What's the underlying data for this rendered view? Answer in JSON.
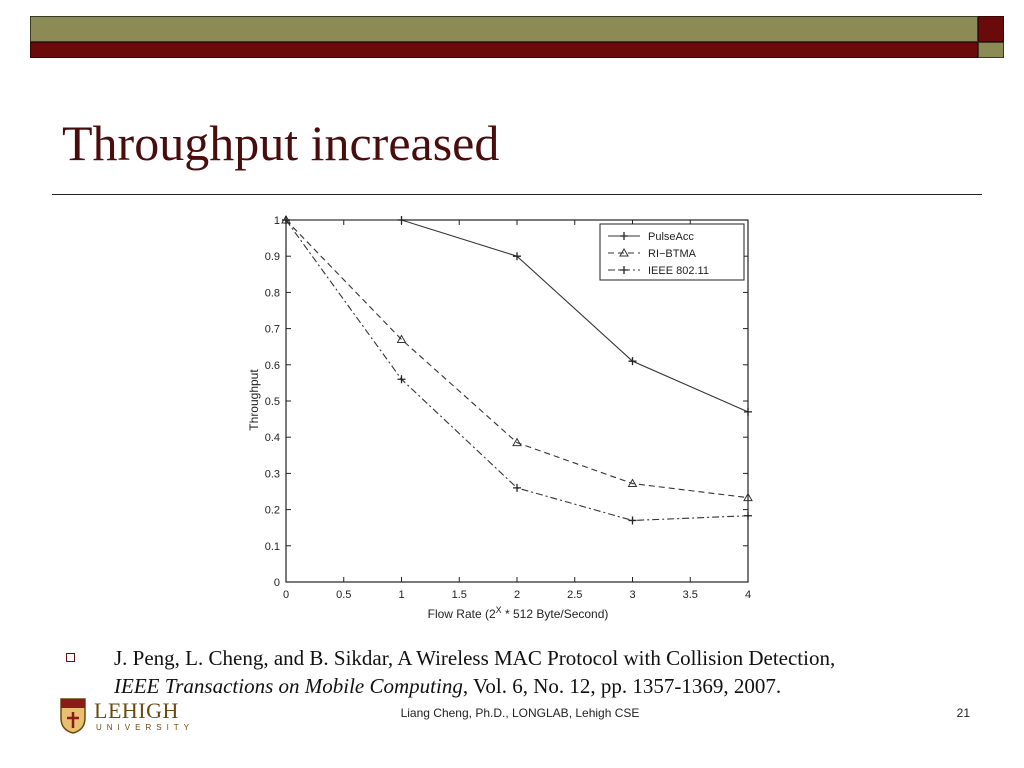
{
  "slide": {
    "title": "Throughput increased",
    "footer_center": "Liang Cheng, Ph.D., LONGLAB, Lehigh CSE",
    "page_number": "21",
    "logo_name": "LEHIGH",
    "logo_sub": "UNIVERSITY"
  },
  "citation": {
    "authors": "J. Peng, L. Cheng, and B. Sikdar, A Wireless MAC Protocol with Collision Detection,",
    "journal": "IEEE Transactions on Mobile Computing",
    "rest": ", Vol. 6, No. 12, pp. 1357-1369, 2007."
  },
  "chart_data": {
    "type": "line",
    "ylabel": "Throughput",
    "xlabel": "Flow Rate (2^X * 512 Byte/Second)",
    "xlim": [
      0,
      4
    ],
    "ylim": [
      0,
      1
    ],
    "x_ticks": [
      "0",
      "0.5",
      "1",
      "1.5",
      "2",
      "2.5",
      "3",
      "3.5",
      "4"
    ],
    "y_ticks": [
      "0",
      "0.1",
      "0.2",
      "0.3",
      "0.4",
      "0.5",
      "0.6",
      "0.7",
      "0.8",
      "0.9",
      "1"
    ],
    "legend_position": "top-right",
    "series": [
      {
        "name": "PulseAcc",
        "marker": "plus",
        "dash": "solid",
        "x": [
          0,
          1,
          2,
          3,
          4
        ],
        "values": [
          1.0,
          1.0,
          0.9,
          0.61,
          0.47
        ]
      },
      {
        "name": "RI−BTMA",
        "marker": "triangle",
        "dash": "dashed",
        "x": [
          0,
          1,
          2,
          3,
          4
        ],
        "values": [
          1.0,
          0.67,
          0.385,
          0.272,
          0.233
        ]
      },
      {
        "name": "IEEE 802.11",
        "marker": "plus",
        "dash": "dashdot",
        "x": [
          0,
          1,
          2,
          3,
          4
        ],
        "values": [
          1.0,
          0.56,
          0.26,
          0.17,
          0.183
        ]
      }
    ]
  }
}
